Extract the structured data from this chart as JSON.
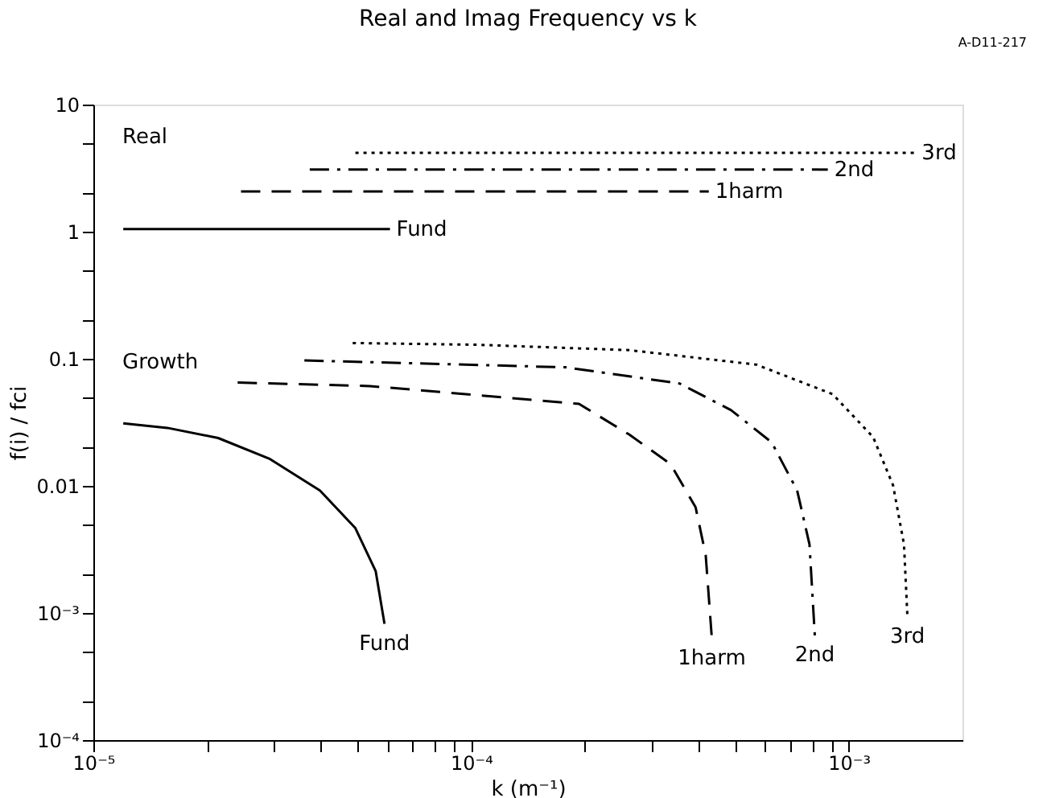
{
  "chart_data": {
    "type": "line",
    "title": "Real and Imag Frequency vs k",
    "xlabel": "k (m⁻¹)",
    "ylabel": "f(i) / fci",
    "log": "xy",
    "grid": false,
    "marker": "none",
    "xlim": [
      1e-05,
      0.002
    ],
    "ylim": [
      0.0001,
      10
    ],
    "xticks": [
      {
        "value": 1e-05,
        "label": "10⁻⁵"
      },
      {
        "value": 2e-05,
        "label": null
      },
      {
        "value": 3e-05,
        "label": null
      },
      {
        "value": 4e-05,
        "label": null
      },
      {
        "value": 5e-05,
        "label": null
      },
      {
        "value": 6e-05,
        "label": null
      },
      {
        "value": 7e-05,
        "label": null
      },
      {
        "value": 8e-05,
        "label": null
      },
      {
        "value": 9e-05,
        "label": null
      },
      {
        "value": 0.0001,
        "label": "10⁻⁴"
      },
      {
        "value": 0.0002,
        "label": null
      },
      {
        "value": 0.0003,
        "label": null
      },
      {
        "value": 0.0004,
        "label": null
      },
      {
        "value": 0.0005,
        "label": null
      },
      {
        "value": 0.0006,
        "label": null
      },
      {
        "value": 0.0007,
        "label": null
      },
      {
        "value": 0.0008,
        "label": null
      },
      {
        "value": 0.0009,
        "label": null
      },
      {
        "value": 0.001,
        "label": "10⁻³"
      }
    ],
    "yticks": [
      {
        "value": 0.0001,
        "label": "10⁻⁴"
      },
      {
        "value": 0.0002,
        "label": null
      },
      {
        "value": 0.0005,
        "label": null
      },
      {
        "value": 0.001,
        "label": "10⁻³"
      },
      {
        "value": 0.002,
        "label": null
      },
      {
        "value": 0.005,
        "label": null
      },
      {
        "value": 0.01,
        "label": "0.01"
      },
      {
        "value": 0.02,
        "label": null
      },
      {
        "value": 0.05,
        "label": null
      },
      {
        "value": 0.1,
        "label": "0.1"
      },
      {
        "value": 0.2,
        "label": null
      },
      {
        "value": 0.5,
        "label": null
      },
      1,
      {
        "value": 2,
        "label": null
      },
      {
        "value": 5,
        "label": null
      },
      10
    ],
    "annotations": [
      "Real",
      "Growth",
      "A-D11-217"
    ],
    "series": [
      {
        "name": "Fund",
        "color": "#000000",
        "line_style": "solid",
        "x": [
          1.2e-05,
          6.1e-05
        ],
        "values": [
          1.05,
          1.05
        ]
      },
      {
        "name": "1harm",
        "color": "#000000",
        "line_style": "dashed",
        "x": [
          2.46e-05,
          0.000426
        ],
        "values": [
          2.07,
          2.07
        ]
      },
      {
        "name": "2nd",
        "color": "#000000",
        "line_style": "dashdot",
        "x": [
          3.74e-05,
          0.00088
        ],
        "values": [
          3.08,
          3.08
        ]
      },
      {
        "name": "3rd",
        "color": "#000000",
        "line_style": "dotted",
        "x": [
          4.94e-05,
          0.0015
        ],
        "values": [
          4.17,
          4.17
        ]
      },
      {
        "name": "Fund",
        "color": "#000000",
        "line_style": "solid",
        "x": [
          1.2e-05,
          1.57e-05,
          2.14e-05,
          2.92e-05,
          3.98e-05,
          4.94e-05,
          5.59e-05,
          5.9e-05
        ],
        "values": [
          0.031,
          0.0286,
          0.0238,
          0.0164,
          0.0092,
          0.00465,
          0.00214,
          0.00082
        ]
      },
      {
        "name": "1harm",
        "color": "#000000",
        "line_style": "dashed",
        "x": [
          2.41e-05,
          5.4e-05,
          0.000193,
          0.000262,
          0.000337,
          0.000393,
          0.000418,
          0.000434
        ],
        "values": [
          0.065,
          0.061,
          0.0442,
          0.0254,
          0.0149,
          0.0068,
          0.00286,
          0.00063
        ]
      },
      {
        "name": "2nd",
        "color": "#000000",
        "line_style": "dashdot",
        "x": [
          3.62e-05,
          0.000178,
          0.000356,
          0.000488,
          0.000625,
          0.00073,
          0.000787,
          0.000813
        ],
        "values": [
          0.097,
          0.0857,
          0.064,
          0.0394,
          0.022,
          0.0092,
          0.00347,
          0.000665
        ]
      },
      {
        "name": "3rd",
        "color": "#000000",
        "line_style": "dotted",
        "x": [
          4.86e-05,
          0.000103,
          0.000262,
          0.000569,
          0.000906,
          0.00116,
          0.00131,
          0.0014,
          0.00143
        ],
        "values": [
          0.133,
          0.129,
          0.117,
          0.09,
          0.0527,
          0.0242,
          0.0101,
          0.00347,
          0.00093
        ]
      }
    ]
  }
}
